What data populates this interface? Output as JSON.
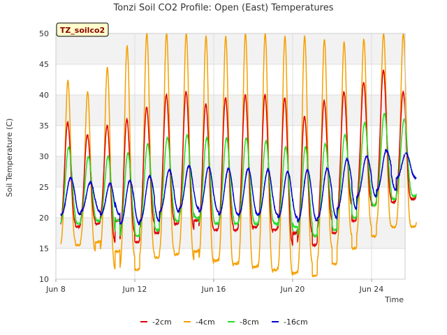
{
  "chart_data": {
    "type": "line",
    "title": "Tonzi Soil CO2 Profile: Open (East) Temperatures",
    "xlabel": "Time",
    "ylabel": "Soil Temperature (C)",
    "badge": "TZ_soilco2",
    "ylim": [
      10,
      50
    ],
    "yticks": [
      10,
      15,
      20,
      25,
      30,
      35,
      40,
      45,
      50
    ],
    "xlim_days": [
      8,
      25.7
    ],
    "xticks": [
      {
        "day": 8,
        "label": "Jun 8"
      },
      {
        "day": 12,
        "label": "Jun 12"
      },
      {
        "day": 16,
        "label": "Jun 16"
      },
      {
        "day": 20,
        "label": "Jun 20"
      },
      {
        "day": 24,
        "label": "Jun 24"
      }
    ],
    "x_start_day": 8.25,
    "grid": true,
    "legend_position": "bottom",
    "series": [
      {
        "name": "-2cm",
        "color": "#dd0000",
        "maxima": [
          35.5,
          33.5,
          35.0,
          36.0,
          38.0,
          40.0,
          40.5,
          38.5,
          39.5,
          40.0,
          40.0,
          39.5,
          36.5,
          39.0,
          40.5,
          42.0,
          44.0,
          40.5
        ],
        "minima": [
          18.5,
          19.0,
          19.5,
          16.0,
          17.5,
          19.0,
          19.5,
          18.0,
          18.0,
          18.5,
          18.0,
          17.5,
          15.5,
          17.5,
          19.5,
          22.0,
          22.5,
          23.0
        ]
      },
      {
        "name": "-4cm",
        "color": "#f5a000",
        "maxima": [
          42.3,
          40.5,
          44.5,
          48.0,
          50.0,
          50.0,
          50.0,
          49.5,
          49.5,
          50.0,
          50.0,
          49.5,
          49.5,
          49.0,
          48.5,
          49.0,
          50.0,
          50.0
        ],
        "minima": [
          15.5,
          16.0,
          14.5,
          11.5,
          13.5,
          14.0,
          14.5,
          13.0,
          12.5,
          12.0,
          11.5,
          11.0,
          10.5,
          12.5,
          15.0,
          17.0,
          18.5,
          18.5
        ],
        "extra": {
          "secondary_peaks": [
            33.0,
            33.0,
            29.0
          ],
          "min_before": 17.0
        }
      },
      {
        "name": "-8cm",
        "color": "#22dd22",
        "maxima": [
          31.5,
          30.0,
          30.0,
          30.5,
          32.0,
          33.0,
          33.5,
          33.0,
          33.0,
          33.0,
          32.5,
          31.5,
          31.5,
          32.0,
          33.5,
          35.5,
          37.0,
          36.0
        ],
        "minima": [
          19.0,
          19.5,
          19.5,
          17.0,
          18.0,
          19.5,
          20.0,
          19.0,
          19.0,
          19.0,
          19.0,
          18.5,
          17.0,
          18.0,
          20.0,
          22.0,
          23.0,
          23.5
        ]
      },
      {
        "name": "-16cm",
        "color": "#0000cc",
        "maxima": [
          26.5,
          25.8,
          25.6,
          26.0,
          26.8,
          27.8,
          28.5,
          28.3,
          28.0,
          28.0,
          27.8,
          27.5,
          27.8,
          28.0,
          29.5,
          30.0,
          31.0,
          30.5
        ],
        "minima": [
          20.5,
          21.0,
          20.5,
          19.0,
          19.5,
          21.0,
          21.5,
          21.0,
          20.5,
          20.5,
          20.5,
          20.0,
          19.5,
          20.0,
          21.5,
          23.5,
          24.5,
          26.5
        ]
      }
    ]
  }
}
